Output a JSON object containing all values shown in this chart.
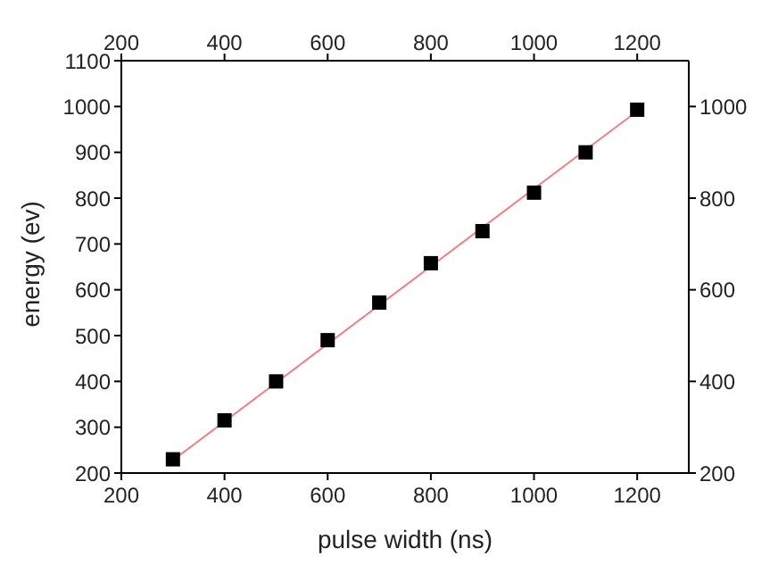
{
  "chart_data": {
    "type": "scatter",
    "xlabel": "pulse width (ns)",
    "ylabel": "energy (ev)",
    "xlim": [
      200,
      1300
    ],
    "xticks": [
      200,
      400,
      600,
      800,
      1000,
      1200
    ],
    "x2lim": [
      200,
      1300
    ],
    "x2ticks": [
      200,
      400,
      600,
      800,
      1000,
      1200
    ],
    "ylim": [
      200,
      1100
    ],
    "yticks": [
      200,
      300,
      400,
      500,
      600,
      700,
      800,
      900,
      1000,
      1100
    ],
    "y2lim": [
      200,
      1100
    ],
    "y2ticks": [
      200,
      400,
      600,
      800,
      1000
    ],
    "series": [
      {
        "color": "#000000",
        "marker": "square",
        "x": [
          300,
          400,
          500,
          600,
          700,
          800,
          900,
          1000,
          1100,
          1200
        ],
        "values": [
          230,
          315,
          400,
          490,
          572,
          658,
          728,
          812,
          900,
          993
        ]
      },
      {
        "type": "line",
        "color": "#f08080",
        "marker": "none",
        "x": [
          300,
          1200
        ],
        "values": [
          228,
          990
        ]
      }
    ]
  }
}
